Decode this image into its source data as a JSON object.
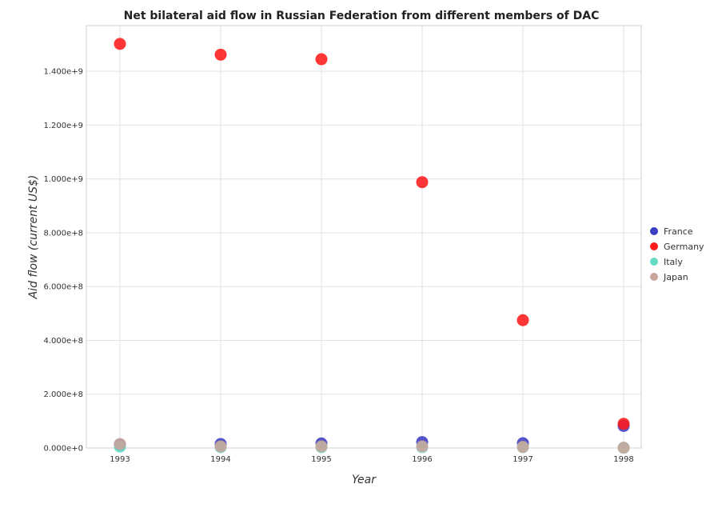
{
  "chart_data": {
    "type": "scatter",
    "title": "Net bilateral aid flow in Russian Federation from different members of DAC",
    "xlabel": "Year",
    "ylabel": "Aid flow (current US$)",
    "categories": [
      "1993",
      "1994",
      "1995",
      "1996",
      "1997",
      "1998"
    ],
    "ylim": [
      0,
      1570000000
    ],
    "yticks": [
      0,
      200000000,
      400000000,
      600000000,
      800000000,
      1000000000,
      1200000000,
      1400000000
    ],
    "ytick_labels": [
      "0.000e+0",
      "2.000e+8",
      "4.000e+8",
      "6.000e+8",
      "8.000e+8",
      "1.000e+9",
      "1.200e+9",
      "1.400e+9"
    ],
    "grid": true,
    "legend_position": "right",
    "series": [
      {
        "name": "France",
        "color": "#3b3ec2",
        "values": [
          12000000,
          15000000,
          17000000,
          22000000,
          18000000,
          82000000
        ]
      },
      {
        "name": "Germany",
        "color": "#ff1a1a",
        "values": [
          1502000000,
          1462000000,
          1445000000,
          988000000,
          475000000,
          90000000
        ]
      },
      {
        "name": "Italy",
        "color": "#66d9c5",
        "values": [
          5000000,
          3000000,
          3000000,
          3000000,
          3000000,
          1000000
        ]
      },
      {
        "name": "Japan",
        "color": "#c9a49a",
        "values": [
          15000000,
          6000000,
          6000000,
          6000000,
          4000000,
          1000000
        ]
      }
    ]
  }
}
